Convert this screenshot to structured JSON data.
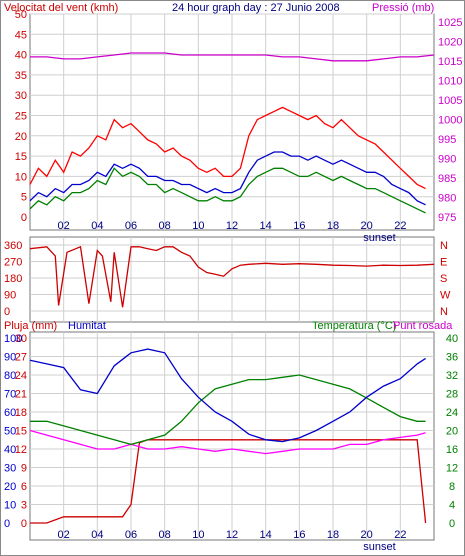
{
  "chart_data": [
    {
      "type": "line",
      "title": "24 hour graph day : 27 Junio 2008",
      "ylabel_left": "Velocitat del vent (kmh)",
      "ylabel_right": "Pressió (mb)",
      "x_ticks": [
        "02",
        "04",
        "06",
        "08",
        "10",
        "12",
        "14",
        "16",
        "18",
        "20",
        "22"
      ],
      "x_annotation": "sunset",
      "y_left_ticks": [
        0,
        5,
        10,
        15,
        20,
        25,
        30,
        35,
        40,
        45,
        50
      ],
      "y_right_ticks": [
        975,
        980,
        985,
        990,
        995,
        1000,
        1005,
        1010,
        1015,
        1020,
        1025
      ],
      "ylim_left": [
        0,
        50
      ],
      "ylim_right": [
        975,
        1027
      ],
      "colors": {
        "gust": "#ff0000",
        "avg": "#0000cc",
        "wind": "#008000",
        "pressure": "#cc00cc"
      },
      "series": [
        {
          "x": [
            0,
            0.5,
            1,
            1.5,
            2,
            2.5,
            3,
            3.5,
            4,
            4.5,
            5,
            5.5,
            6,
            6.5,
            7,
            7.5,
            8,
            8.5,
            9,
            9.5,
            10,
            10.5,
            11,
            11.5,
            12,
            12.5,
            13,
            13.5,
            14,
            14.5,
            15,
            15.5,
            16,
            16.5,
            17,
            17.5,
            18,
            18.5,
            19,
            19.5,
            20,
            20.5,
            21,
            21.5,
            22,
            22.5,
            23,
            23.5
          ],
          "values": [
            8,
            12,
            10,
            14,
            11,
            16,
            15,
            17,
            20,
            19,
            24,
            22,
            23,
            21,
            19,
            18,
            16,
            17,
            15,
            14,
            12,
            11,
            12,
            10,
            10,
            12,
            20,
            24,
            25,
            26,
            27,
            26,
            25,
            24,
            25,
            23,
            22,
            24,
            22,
            20,
            19,
            18,
            16,
            14,
            12,
            10,
            8,
            7
          ]
        },
        {
          "x": [
            0,
            0.5,
            1,
            1.5,
            2,
            2.5,
            3,
            3.5,
            4,
            4.5,
            5,
            5.5,
            6,
            6.5,
            7,
            7.5,
            8,
            8.5,
            9,
            9.5,
            10,
            10.5,
            11,
            11.5,
            12,
            12.5,
            13,
            13.5,
            14,
            14.5,
            15,
            15.5,
            16,
            16.5,
            17,
            17.5,
            18,
            18.5,
            19,
            19.5,
            20,
            20.5,
            21,
            21.5,
            22,
            22.5,
            23,
            23.5
          ],
          "values": [
            4,
            6,
            5,
            7,
            6,
            8,
            8,
            9,
            11,
            10,
            13,
            12,
            13,
            12,
            10,
            10,
            9,
            9,
            8,
            8,
            7,
            6,
            7,
            6,
            6,
            7,
            11,
            14,
            15,
            16,
            16,
            15,
            15,
            14,
            15,
            14,
            13,
            14,
            13,
            12,
            11,
            11,
            10,
            8,
            7,
            6,
            4,
            3
          ]
        },
        {
          "x": [
            0,
            0.5,
            1,
            1.5,
            2,
            2.5,
            3,
            3.5,
            4,
            4.5,
            5,
            5.5,
            6,
            6.5,
            7,
            7.5,
            8,
            8.5,
            9,
            9.5,
            10,
            10.5,
            11,
            11.5,
            12,
            12.5,
            13,
            13.5,
            14,
            14.5,
            15,
            15.5,
            16,
            16.5,
            17,
            17.5,
            18,
            18.5,
            19,
            19.5,
            20,
            20.5,
            21,
            21.5,
            22,
            22.5,
            23,
            23.5
          ],
          "values": [
            2,
            4,
            3,
            5,
            4,
            6,
            6,
            7,
            9,
            8,
            12,
            10,
            11,
            10,
            8,
            8,
            6,
            7,
            6,
            5,
            4,
            4,
            5,
            4,
            4,
            5,
            8,
            10,
            11,
            12,
            12,
            11,
            10,
            10,
            11,
            10,
            9,
            10,
            9,
            8,
            7,
            7,
            6,
            5,
            4,
            3,
            2,
            1
          ]
        },
        {
          "x": [
            0,
            1,
            2,
            3,
            4,
            5,
            6,
            7,
            8,
            9,
            10,
            11,
            12,
            13,
            14,
            15,
            16,
            17,
            18,
            19,
            20,
            21,
            22,
            23,
            24
          ],
          "values": [
            1016,
            1016,
            1015.5,
            1015.5,
            1016,
            1016.5,
            1017,
            1017,
            1017,
            1016.5,
            1016.5,
            1016.5,
            1016.5,
            1016.5,
            1016.5,
            1016,
            1016,
            1015.5,
            1015,
            1015,
            1015,
            1015.5,
            1016,
            1016,
            1016.5
          ]
        }
      ]
    },
    {
      "type": "line",
      "y_left_ticks": [
        0,
        90,
        180,
        270,
        360
      ],
      "y_right_ticks": [
        "N",
        "W",
        "S",
        "E",
        "N"
      ],
      "ylim": [
        0,
        360
      ],
      "color": "#cc0000",
      "x": [
        0,
        1,
        1.5,
        1.7,
        2.2,
        3,
        3.5,
        4,
        4.3,
        4.8,
        5,
        5.5,
        6,
        6.5,
        7,
        7.5,
        8,
        8.5,
        9,
        9.5,
        10,
        10.5,
        11,
        11.5,
        12,
        12.5,
        13,
        14,
        15,
        16,
        17,
        18,
        19,
        20,
        21,
        22,
        23,
        24
      ],
      "values": [
        340,
        350,
        300,
        30,
        320,
        350,
        40,
        330,
        300,
        50,
        320,
        20,
        350,
        350,
        340,
        330,
        350,
        350,
        320,
        300,
        240,
        210,
        200,
        190,
        230,
        250,
        255,
        260,
        255,
        258,
        255,
        250,
        248,
        245,
        250,
        248,
        250,
        255
      ]
    },
    {
      "type": "line",
      "ylabel_left": "Pluja (mm)",
      "ylabel_left2": "Humitat",
      "ylabel_right": "Temperatura (°C)",
      "ylabel_right2": "Punt rosada",
      "y_left_ticks": [
        0,
        3,
        6,
        9,
        12,
        15,
        18,
        21,
        24,
        27,
        30
      ],
      "y_humidity_ticks": [
        0,
        10,
        20,
        30,
        40,
        50,
        60,
        70,
        80,
        90,
        100
      ],
      "y_right_ticks": [
        0,
        4,
        8,
        12,
        16,
        20,
        24,
        28,
        32,
        36,
        40
      ],
      "ylim_rain": [
        0,
        30
      ],
      "ylim_humidity": [
        0,
        100
      ],
      "ylim_temp": [
        0,
        40
      ],
      "x_ticks": [
        "02",
        "04",
        "06",
        "08",
        "10",
        "12",
        "14",
        "16",
        "18",
        "20",
        "22"
      ],
      "x_annotation": "sunset",
      "colors": {
        "rain": "#cc0000",
        "humidity": "#0000cc",
        "temperature": "#008000",
        "dewpoint": "#ff00ff"
      },
      "series": [
        {
          "x": [
            0,
            1,
            2,
            3,
            4,
            5,
            5.5,
            6,
            6.5,
            7,
            8,
            9,
            10,
            11,
            12,
            13,
            14,
            15,
            16,
            17,
            18,
            19,
            20,
            21,
            22,
            23,
            23.5
          ],
          "values": [
            0,
            0,
            1,
            1,
            1,
            1,
            1,
            3,
            13,
            13.5,
            13.5,
            13.5,
            13.5,
            13.5,
            13.5,
            13.5,
            13.5,
            13.5,
            13.5,
            13.5,
            13.5,
            13.5,
            13.5,
            13.5,
            13.5,
            13.5,
            0
          ]
        },
        {
          "x": [
            0,
            1,
            2,
            3,
            4,
            5,
            6,
            7,
            8,
            9,
            10,
            11,
            12,
            13,
            14,
            15,
            16,
            17,
            18,
            19,
            20,
            21,
            22,
            23,
            23.5
          ],
          "values": [
            88,
            86,
            84,
            72,
            70,
            85,
            92,
            94,
            92,
            78,
            68,
            60,
            55,
            48,
            45,
            44,
            46,
            50,
            55,
            60,
            68,
            74,
            78,
            86,
            89
          ]
        },
        {
          "x": [
            0,
            1,
            2,
            3,
            4,
            5,
            6,
            7,
            8,
            9,
            10,
            11,
            12,
            13,
            14,
            15,
            16,
            17,
            18,
            19,
            20,
            21,
            22,
            23,
            23.5
          ],
          "values": [
            22,
            22,
            21,
            20,
            19,
            18,
            17,
            18,
            19,
            22,
            26,
            29,
            30,
            31,
            31,
            31.5,
            32,
            31,
            30,
            29,
            27,
            25,
            23,
            22,
            22
          ]
        },
        {
          "x": [
            0,
            1,
            2,
            3,
            4,
            5,
            6,
            7,
            8,
            9,
            10,
            11,
            12,
            13,
            14,
            15,
            16,
            17,
            18,
            19,
            20,
            21,
            22,
            23,
            23.5
          ],
          "values": [
            20,
            19,
            18,
            17,
            16,
            16,
            17,
            16,
            16,
            16.5,
            16,
            15.5,
            16,
            15.5,
            15,
            15.5,
            16,
            16,
            16,
            17,
            17,
            18,
            18.5,
            19,
            19.5
          ]
        }
      ]
    }
  ]
}
